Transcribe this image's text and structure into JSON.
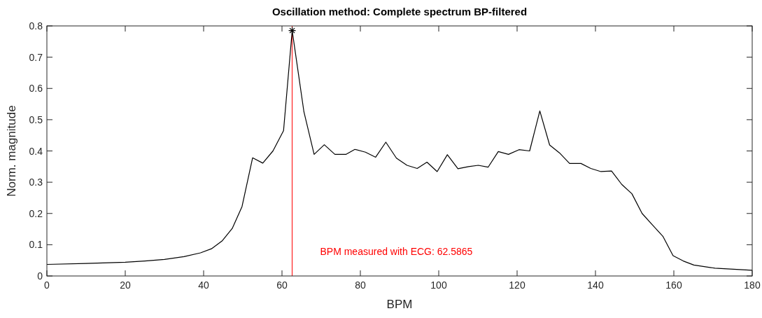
{
  "chart_data": {
    "type": "line",
    "title": "Oscillation method: Complete spectrum BP-filtered",
    "xlabel": "BPM",
    "ylabel": "Norm. magnitude",
    "xlim": [
      0,
      180
    ],
    "ylim": [
      0,
      0.8
    ],
    "xticks": [
      0,
      20,
      40,
      60,
      80,
      100,
      120,
      140,
      160,
      180
    ],
    "yticks": [
      0,
      0.1,
      0.2,
      0.3,
      0.4,
      0.5,
      0.6,
      0.7,
      0.8
    ],
    "grid": false,
    "series": [
      {
        "color": "#000000",
        "marker": "none",
        "x": [
          0,
          10,
          20,
          25,
          30,
          35,
          39.2,
          42,
          44.7,
          47.3,
          49.8,
          52.5,
          55.1,
          57.7,
          60.4,
          62.6,
          65.6,
          68.2,
          70.8,
          73.5,
          76.3,
          78.6,
          81.3,
          83.9,
          86.5,
          89.2,
          91.9,
          94.5,
          97.0,
          99.6,
          102.2,
          104.9,
          107.6,
          110.1,
          112.6,
          115.2,
          117.8,
          120.5,
          123.2,
          125.8,
          128.3,
          130.8,
          133.4,
          136.3,
          138.8,
          141.4,
          144.1,
          146.7,
          149.3,
          151.9,
          154.5,
          157.2,
          159.8,
          162.4,
          165.1,
          170.5,
          180
        ],
        "values": [
          0.037,
          0.04,
          0.044,
          0.048,
          0.053,
          0.062,
          0.074,
          0.087,
          0.112,
          0.152,
          0.222,
          0.378,
          0.361,
          0.4,
          0.465,
          0.785,
          0.525,
          0.389,
          0.42,
          0.389,
          0.389,
          0.405,
          0.396,
          0.38,
          0.428,
          0.377,
          0.354,
          0.344,
          0.364,
          0.334,
          0.388,
          0.343,
          0.35,
          0.354,
          0.348,
          0.398,
          0.389,
          0.404,
          0.4,
          0.528,
          0.419,
          0.394,
          0.36,
          0.36,
          0.344,
          0.334,
          0.336,
          0.293,
          0.263,
          0.2,
          0.164,
          0.127,
          0.065,
          0.048,
          0.035,
          0.025,
          0.018
        ]
      },
      {
        "type": "scatter",
        "color": "#000000",
        "marker": "cross",
        "x": [
          62.6
        ],
        "values": [
          0.785
        ]
      }
    ],
    "ref_lines": [
      {
        "axis": "x",
        "value": 62.5865,
        "label": "BPM measured with ECG: 62.5865",
        "color": "#ff0000"
      }
    ]
  }
}
